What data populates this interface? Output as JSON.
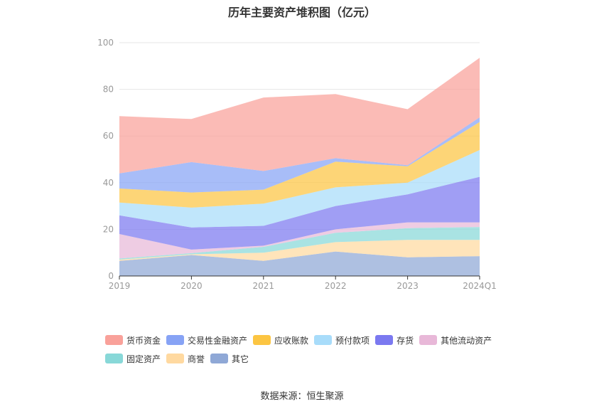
{
  "chart_data": {
    "type": "area",
    "stacked": true,
    "title": "历年主要资产堆积图（亿元）",
    "x": [
      "2019",
      "2020",
      "2021",
      "2022",
      "2023",
      "2024Q1"
    ],
    "ylim": [
      0,
      100
    ],
    "yticks": [
      0,
      20,
      40,
      60,
      80,
      100
    ],
    "grid": true,
    "legend_position": "bottom",
    "series": [
      {
        "name": "其它",
        "color": "#8fa8d6",
        "values": [
          6.5,
          9.0,
          6.5,
          10.5,
          8.0,
          8.5
        ]
      },
      {
        "name": "商誉",
        "color": "#ffd9a0",
        "values": [
          0.5,
          0.3,
          3.5,
          4.0,
          7.5,
          7.0
        ]
      },
      {
        "name": "固定资产",
        "color": "#88d8d8",
        "values": [
          0.5,
          0.5,
          2.5,
          4.0,
          5.0,
          5.5
        ]
      },
      {
        "name": "其他流动资产",
        "color": "#e8b8d8",
        "values": [
          10.5,
          1.5,
          0.5,
          1.5,
          2.5,
          2.0
        ]
      },
      {
        "name": "存货",
        "color": "#7b79f0",
        "values": [
          8.0,
          9.5,
          8.5,
          10.0,
          12.0,
          19.5
        ]
      },
      {
        "name": "预付款项",
        "color": "#a8dcfa",
        "values": [
          5.5,
          8.5,
          9.5,
          8.0,
          5.0,
          11.5
        ]
      },
      {
        "name": "应收账款",
        "color": "#fcc542",
        "values": [
          6.0,
          6.5,
          6.0,
          11.0,
          7.0,
          12.0
        ]
      },
      {
        "name": "交易性金融资产",
        "color": "#87a3f5",
        "values": [
          6.5,
          13.0,
          8.0,
          1.5,
          0.5,
          2.0
        ]
      },
      {
        "name": "货币资金",
        "color": "#f9a19a",
        "values": [
          24.5,
          18.5,
          31.5,
          27.5,
          24.0,
          25.5
        ]
      }
    ]
  },
  "legend_order": [
    "货币资金",
    "交易性金融资产",
    "应收账款",
    "预付款项",
    "存货",
    "其他流动资产",
    "固定资产",
    "商誉",
    "其它"
  ],
  "source": "数据来源：恒生聚源"
}
